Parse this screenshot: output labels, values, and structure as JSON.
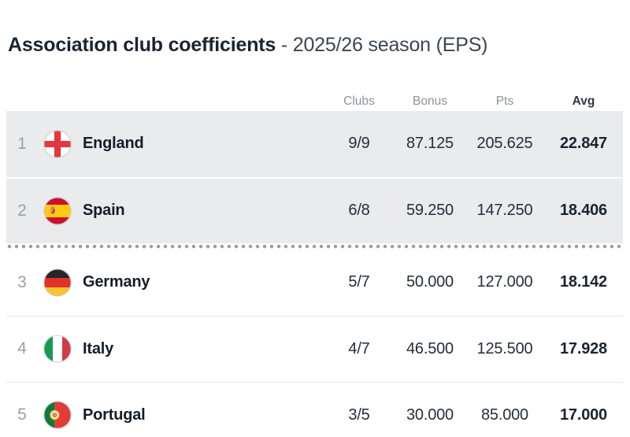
{
  "title": {
    "main": "Association club coefficients",
    "suffix": "- 2025/26 season (EPS)"
  },
  "table": {
    "headers": {
      "clubs": "Clubs",
      "bonus": "Bonus",
      "pts": "Pts",
      "avg": "Avg"
    },
    "rows": [
      {
        "rank": "1",
        "country": "England",
        "flag": "england",
        "clubs": "9/9",
        "bonus": "87.125",
        "pts": "205.625",
        "avg": "22.847",
        "highlight": true
      },
      {
        "rank": "2",
        "country": "Spain",
        "flag": "spain",
        "clubs": "6/8",
        "bonus": "59.250",
        "pts": "147.250",
        "avg": "18.406",
        "highlight": true,
        "separator_after": true
      },
      {
        "rank": "3",
        "country": "Germany",
        "flag": "germany",
        "clubs": "5/7",
        "bonus": "50.000",
        "pts": "127.000",
        "avg": "18.142"
      },
      {
        "rank": "4",
        "country": "Italy",
        "flag": "italy",
        "clubs": "4/7",
        "bonus": "46.500",
        "pts": "125.500",
        "avg": "17.928"
      },
      {
        "rank": "5",
        "country": "Portugal",
        "flag": "portugal",
        "clubs": "3/5",
        "bonus": "30.000",
        "pts": "85.000",
        "avg": "17.000"
      }
    ]
  },
  "colors": {
    "highlight_row_bg": "#e9ebed",
    "title_text": "#1b2531",
    "header_text": "#8b949d",
    "value_text": "#232f3b",
    "rank_text": "#99a2ab",
    "dot_separator": "#97a1ab",
    "row_border": "#e8eaec"
  }
}
